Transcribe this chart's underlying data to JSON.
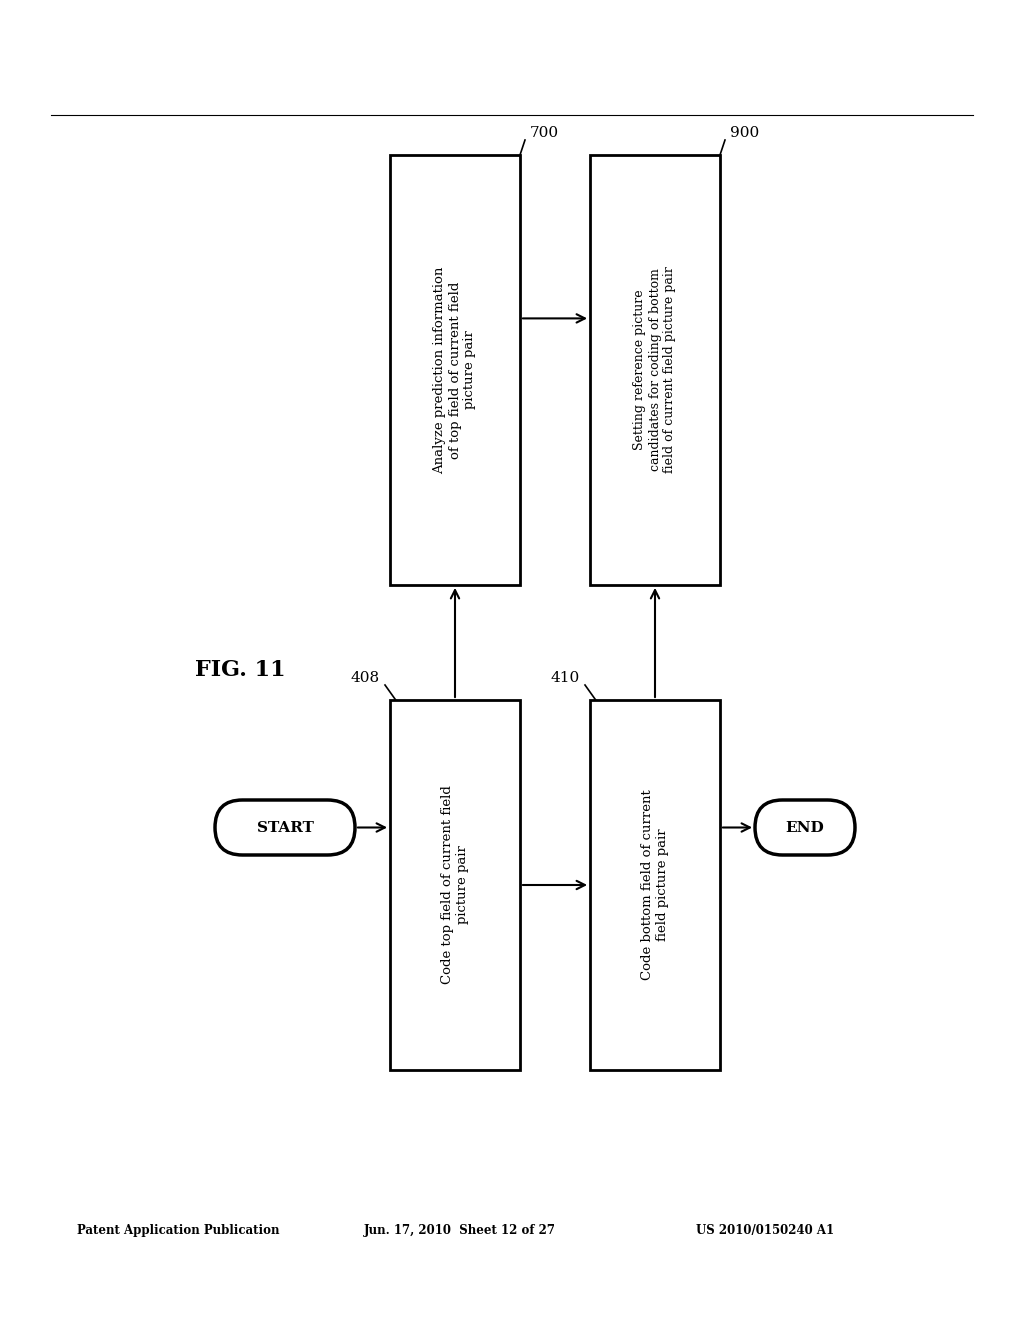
{
  "header_left": "Patent Application Publication",
  "header_mid": "Jun. 17, 2010  Sheet 12 of 27",
  "header_right": "US 2010/0150240 A1",
  "fig_label": "FIG. 11",
  "background_color": "#ffffff",
  "box408_text": "Code top field of current field\npicture pair",
  "box410_text": "Code bottom field of current\nfield picture pair",
  "box700_text": "Analyze prediction information\nof top field of current field\npicture pair",
  "box900_text": "Setting reference picture\ncandidates for coding of bottom\nfield of current field picture pair",
  "start_text": "START",
  "end_text": "END",
  "label_408": "408",
  "label_410": "410",
  "label_700": "700",
  "label_900": "900"
}
